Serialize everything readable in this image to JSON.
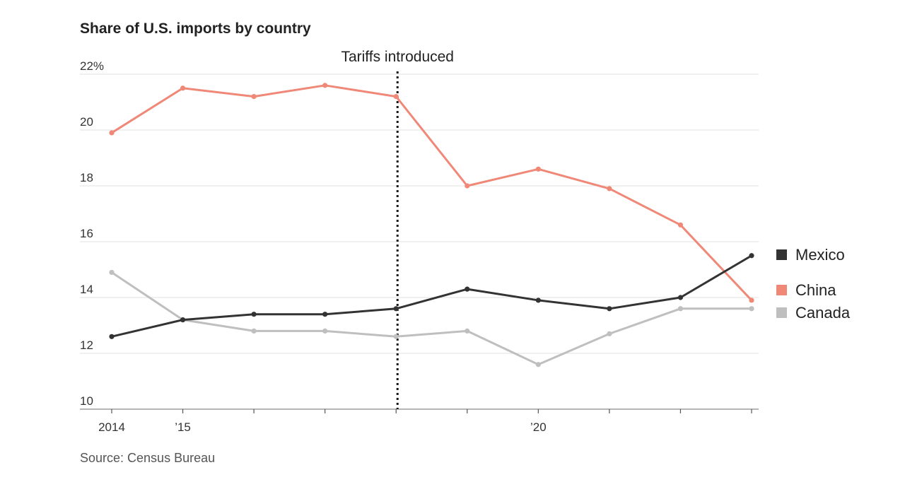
{
  "chart_data": {
    "type": "line",
    "title": "Share of U.S. imports by country",
    "x": [
      2014,
      2015,
      2016,
      2017,
      2018,
      2019,
      2020,
      2021,
      2022,
      2023
    ],
    "x_tick_labels": [
      {
        "x": 2014,
        "label": "2014"
      },
      {
        "x": 2015,
        "label": "’15"
      },
      {
        "x": 2020,
        "label": "’20"
      }
    ],
    "y_tick_labels": [
      {
        "y": 22,
        "label": "22%"
      },
      {
        "y": 20,
        "label": "20"
      },
      {
        "y": 18,
        "label": "18"
      },
      {
        "y": 16,
        "label": "16"
      },
      {
        "y": 14,
        "label": "14"
      },
      {
        "y": 12,
        "label": "12"
      },
      {
        "y": 10,
        "label": "10"
      }
    ],
    "ylim": [
      10,
      22
    ],
    "xlim": [
      2014,
      2023
    ],
    "grid": true,
    "series": [
      {
        "name": "Mexico",
        "color": "#333333",
        "values": [
          12.6,
          13.2,
          13.4,
          13.4,
          13.6,
          14.3,
          13.9,
          13.6,
          14.0,
          15.5
        ]
      },
      {
        "name": "China",
        "color": "#f08878",
        "values": [
          19.9,
          21.5,
          21.2,
          21.6,
          21.2,
          18.0,
          18.6,
          17.9,
          16.6,
          13.9
        ]
      },
      {
        "name": "Canada",
        "color": "#bfbfbf",
        "values": [
          14.9,
          13.2,
          12.8,
          12.8,
          12.6,
          12.8,
          11.6,
          12.7,
          13.6,
          13.6
        ]
      }
    ],
    "legend_order": [
      "Mexico",
      "China",
      "Canada"
    ],
    "annotations": [
      {
        "text": "Tariffs introduced",
        "x": 2018,
        "style": "dotted-vertical-line"
      }
    ],
    "source": "Source: Census Bureau"
  }
}
